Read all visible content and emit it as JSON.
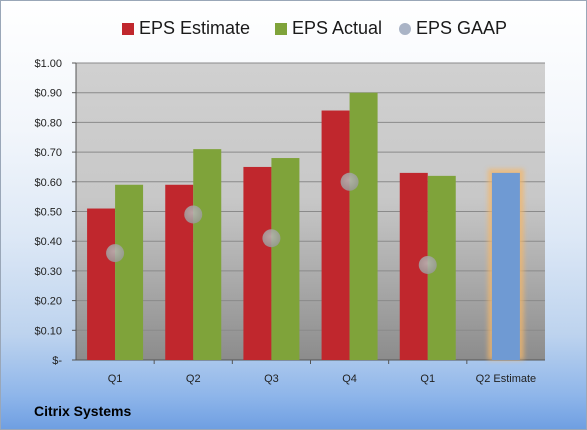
{
  "chart_data": {
    "type": "bar",
    "title": "",
    "xlabel": "",
    "ylabel": "",
    "ylim": [
      0,
      1.0
    ],
    "yticks": [
      0,
      0.1,
      0.2,
      0.3,
      0.4,
      0.5,
      0.6,
      0.7,
      0.8,
      0.9,
      1.0
    ],
    "ytick_labels": [
      "$-",
      "$0.10",
      "$0.20",
      "$0.30",
      "$0.40",
      "$0.50",
      "$0.60",
      "$0.70",
      "$0.80",
      "$0.90",
      "$1.00"
    ],
    "categories": [
      "Q1",
      "Q2",
      "Q3",
      "Q4",
      "Q1",
      "Q2 Estimate"
    ],
    "series": [
      {
        "name": "EPS Estimate",
        "type": "bar",
        "color": "#c0272d",
        "values": [
          0.51,
          0.59,
          0.65,
          0.84,
          0.63,
          null
        ]
      },
      {
        "name": "EPS Actual",
        "type": "bar",
        "color": "#7fa33a",
        "values": [
          0.59,
          0.71,
          0.68,
          0.9,
          0.62,
          null
        ]
      },
      {
        "name": "EPS GAAP",
        "type": "scatter",
        "color": "#aab4c6",
        "values": [
          0.36,
          0.49,
          0.41,
          0.6,
          0.32,
          null
        ]
      },
      {
        "name": "",
        "type": "bar",
        "color": "#6f9ad3",
        "highlight": "#f4b76a",
        "values": [
          null,
          null,
          null,
          null,
          null,
          0.63
        ]
      }
    ],
    "legend_position": "top",
    "grid": true
  },
  "company": "Citrix Systems"
}
